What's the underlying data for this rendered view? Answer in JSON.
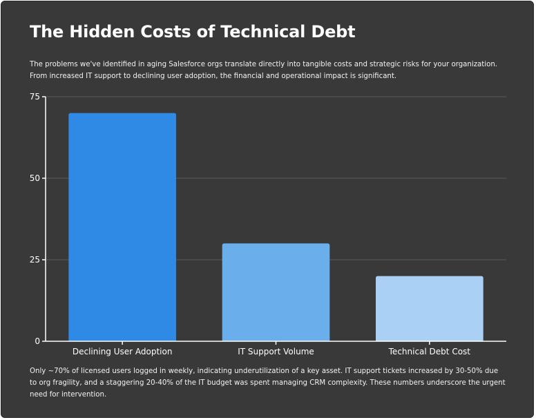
{
  "title": "The Hidden Costs of Technical Debt",
  "intro": "The problems we've identified in aging Salesforce orgs translate directly into tangible costs and strategic risks for your organization. From increased IT support to declining user adoption, the financial and operational impact is significant.",
  "footer": "Only ~70% of licensed users logged in weekly, indicating underutilization of a key asset. IT support tickets increased by 30-50% due to org fragility, and a staggering 20-40% of the IT budget was spent managing CRM complexity. These numbers underscore the urgent need for intervention.",
  "chart_data": {
    "type": "bar",
    "categories": [
      "Declining User Adoption",
      "IT Support Volume",
      "Technical Debt Cost"
    ],
    "values": [
      70,
      30,
      20
    ],
    "ylim": [
      0,
      75
    ],
    "yticks": [
      0,
      25,
      50,
      75
    ],
    "grid": true,
    "legend": "none",
    "colors": [
      "#2e8ae4",
      "#6aaeeb",
      "#aad1f5"
    ],
    "gridColor": "#5c5c5c",
    "axisColor": "#ffffff"
  }
}
